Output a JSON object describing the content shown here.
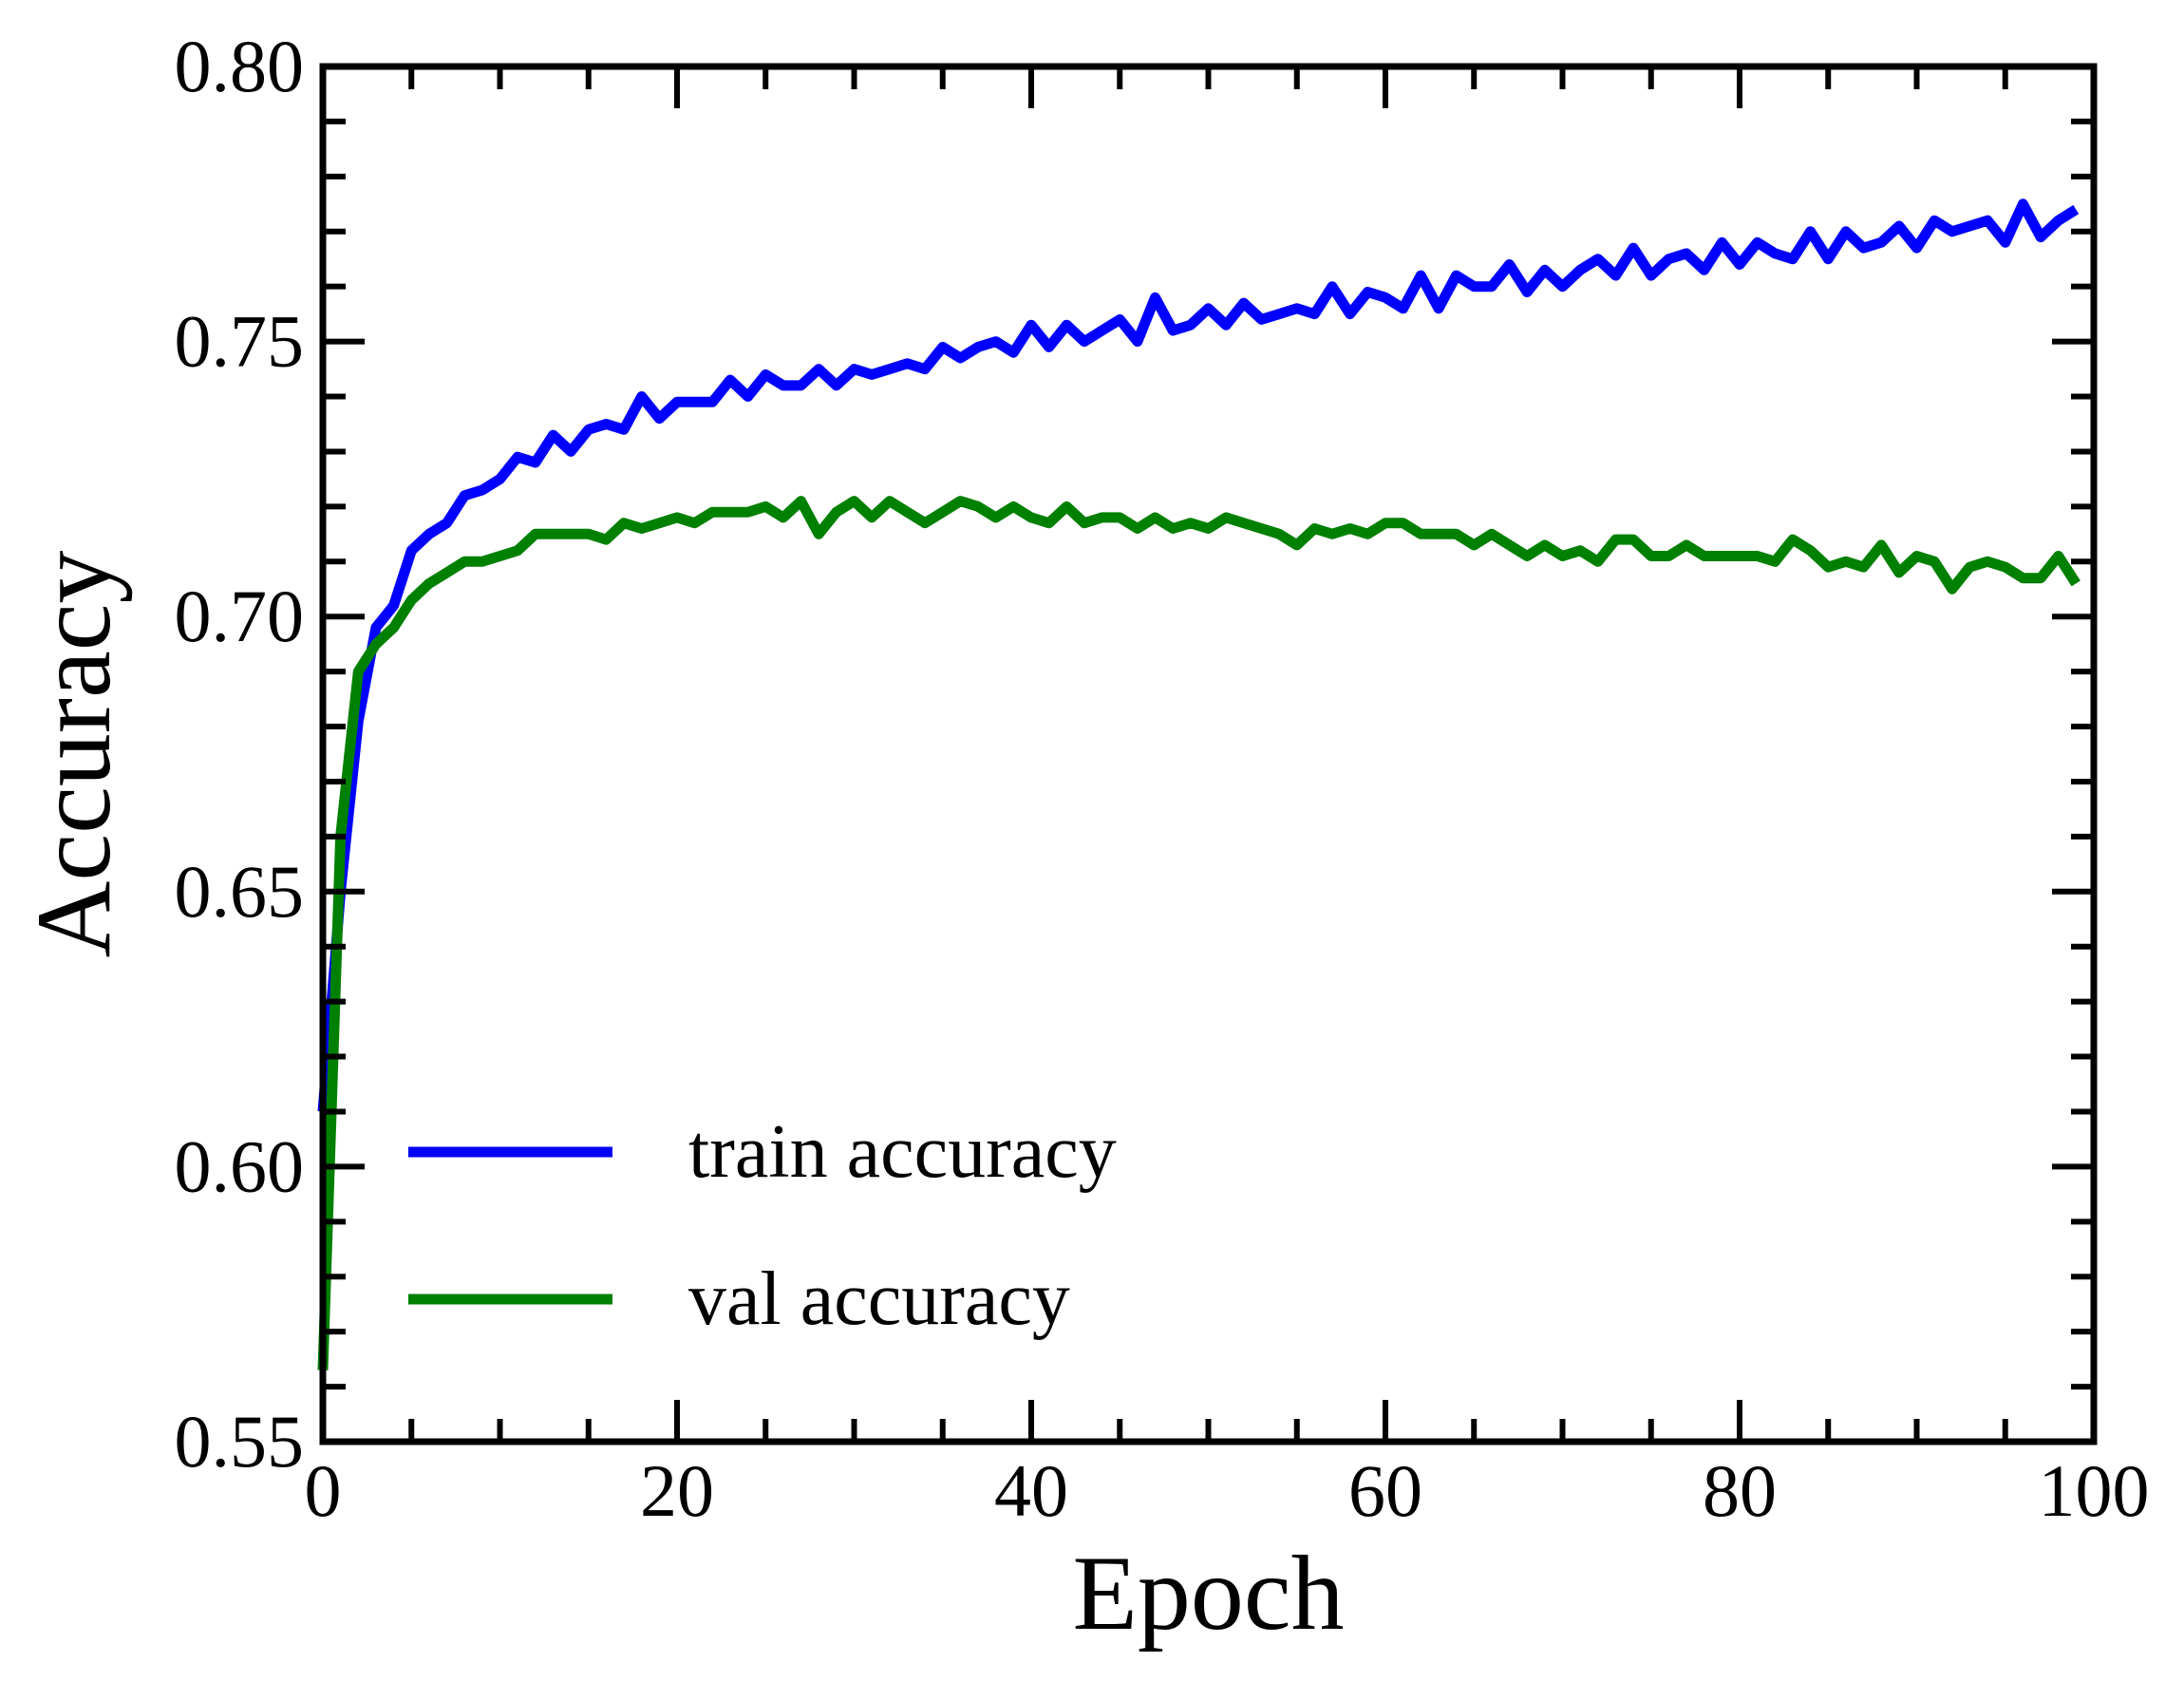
{
  "chart_data": {
    "type": "line",
    "title": "",
    "xlabel": "Epoch",
    "ylabel": "Accuracy",
    "xlim": [
      0,
      100
    ],
    "ylim": [
      0.55,
      0.8
    ],
    "x_ticks": [
      "0",
      "20",
      "40",
      "60",
      "80",
      "100"
    ],
    "y_ticks": [
      "0.55",
      "0.60",
      "0.65",
      "0.70",
      "0.75",
      "0.80"
    ],
    "x_minor_step": 5,
    "y_minor_step": 0.01,
    "grid": false,
    "legend_position": "lower-left",
    "x": [
      0,
      1,
      2,
      3,
      4,
      5,
      6,
      7,
      8,
      9,
      10,
      11,
      12,
      13,
      14,
      15,
      16,
      17,
      18,
      19,
      20,
      21,
      22,
      23,
      24,
      25,
      26,
      27,
      28,
      29,
      30,
      31,
      32,
      33,
      34,
      35,
      36,
      37,
      38,
      39,
      40,
      41,
      42,
      43,
      44,
      45,
      46,
      47,
      48,
      49,
      50,
      51,
      52,
      53,
      54,
      55,
      56,
      57,
      58,
      59,
      60,
      61,
      62,
      63,
      64,
      65,
      66,
      67,
      68,
      69,
      70,
      71,
      72,
      73,
      74,
      75,
      76,
      77,
      78,
      79,
      80,
      81,
      82,
      83,
      84,
      85,
      86,
      87,
      88,
      89,
      90,
      91,
      92,
      93,
      94,
      95,
      96,
      97,
      98,
      99
    ],
    "series": [
      {
        "name": "train accuracy",
        "color": "#0000ff",
        "values": [
          0.61,
          0.65,
          0.681,
          0.698,
          0.702,
          0.712,
          0.715,
          0.717,
          0.722,
          0.723,
          0.725,
          0.729,
          0.728,
          0.733,
          0.73,
          0.734,
          0.735,
          0.734,
          0.74,
          0.736,
          0.739,
          0.739,
          0.739,
          0.743,
          0.74,
          0.744,
          0.742,
          0.742,
          0.745,
          0.742,
          0.745,
          0.744,
          0.745,
          0.746,
          0.745,
          0.749,
          0.747,
          0.749,
          0.75,
          0.748,
          0.753,
          0.749,
          0.753,
          0.75,
          0.752,
          0.754,
          0.75,
          0.758,
          0.752,
          0.753,
          0.756,
          0.753,
          0.757,
          0.754,
          0.755,
          0.756,
          0.755,
          0.76,
          0.755,
          0.759,
          0.758,
          0.756,
          0.762,
          0.756,
          0.762,
          0.76,
          0.76,
          0.764,
          0.759,
          0.763,
          0.76,
          0.763,
          0.765,
          0.762,
          0.767,
          0.762,
          0.765,
          0.766,
          0.763,
          0.768,
          0.764,
          0.768,
          0.766,
          0.765,
          0.77,
          0.765,
          0.77,
          0.767,
          0.768,
          0.771,
          0.767,
          0.772,
          0.77,
          0.771,
          0.772,
          0.768,
          0.775,
          0.769,
          0.772,
          0.774
        ]
      },
      {
        "name": "val accuracy",
        "color": "#008000",
        "values": [
          0.563,
          0.66,
          0.69,
          0.695,
          0.698,
          0.703,
          0.706,
          0.708,
          0.71,
          0.71,
          0.711,
          0.712,
          0.715,
          0.715,
          0.715,
          0.715,
          0.714,
          0.717,
          0.716,
          0.717,
          0.718,
          0.717,
          0.719,
          0.719,
          0.719,
          0.72,
          0.718,
          0.721,
          0.715,
          0.719,
          0.721,
          0.718,
          0.721,
          0.719,
          0.717,
          0.719,
          0.721,
          0.72,
          0.718,
          0.72,
          0.718,
          0.717,
          0.72,
          0.717,
          0.718,
          0.718,
          0.716,
          0.718,
          0.716,
          0.717,
          0.716,
          0.718,
          0.717,
          0.716,
          0.715,
          0.713,
          0.716,
          0.715,
          0.716,
          0.715,
          0.717,
          0.717,
          0.715,
          0.715,
          0.715,
          0.713,
          0.715,
          0.713,
          0.711,
          0.713,
          0.711,
          0.712,
          0.71,
          0.714,
          0.714,
          0.711,
          0.711,
          0.713,
          0.711,
          0.711,
          0.711,
          0.711,
          0.71,
          0.714,
          0.712,
          0.709,
          0.71,
          0.709,
          0.713,
          0.708,
          0.711,
          0.71,
          0.705,
          0.709,
          0.71,
          0.709,
          0.707,
          0.707,
          0.711,
          0.706
        ]
      }
    ]
  }
}
